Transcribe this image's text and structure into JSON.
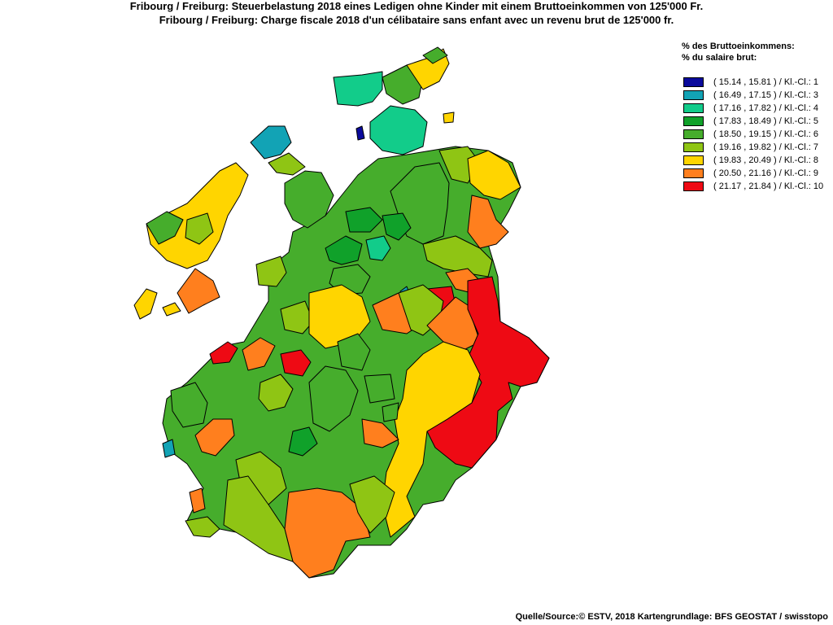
{
  "title_de": "Fribourg / Freiburg: Steuerbelastung 2018 eines Ledigen ohne Kinder mit einem Bruttoeinkommen von 125'000 Fr.",
  "title_fr": "Fribourg / Freiburg: Charge fiscale 2018 d'un célibataire sans enfant avec un revenu brut de 125'000 fr.",
  "legend": {
    "heading_de": "% des Bruttoeinkommens:",
    "heading_fr": "% du salaire brut:",
    "classes": [
      {
        "label": "( 15.14 , 15.81 ) / Kl.-Cl.: 1",
        "color": "#0a0a9c"
      },
      {
        "label": "( 16.49 , 17.15 ) / Kl.-Cl.: 3",
        "color": "#12a3b5"
      },
      {
        "label": "( 17.16 , 17.82 ) / Kl.-Cl.: 4",
        "color": "#12cc8a"
      },
      {
        "label": "( 17.83 , 18.49 ) / Kl.-Cl.: 5",
        "color": "#10a12a"
      },
      {
        "label": "( 18.50 , 19.15 ) / Kl.-Cl.: 6",
        "color": "#46ad2c"
      },
      {
        "label": "( 19.16 , 19.82 ) / Kl.-Cl.: 7",
        "color": "#8fc514"
      },
      {
        "label": "( 19.83 , 20.49 ) / Kl.-Cl.: 8",
        "color": "#ffd500"
      },
      {
        "label": "( 20.50 , 21.16 ) / Kl.-Cl.: 9",
        "color": "#ff7f1e"
      },
      {
        "label": "( 21.17 , 21.84 ) / Kl.-Cl.: 10",
        "color": "#ee0a14"
      }
    ]
  },
  "source": "Quelle/Source:© ESTV, 2018 Kartengrundlage: BFS GEOSTAT / swisstopo"
}
